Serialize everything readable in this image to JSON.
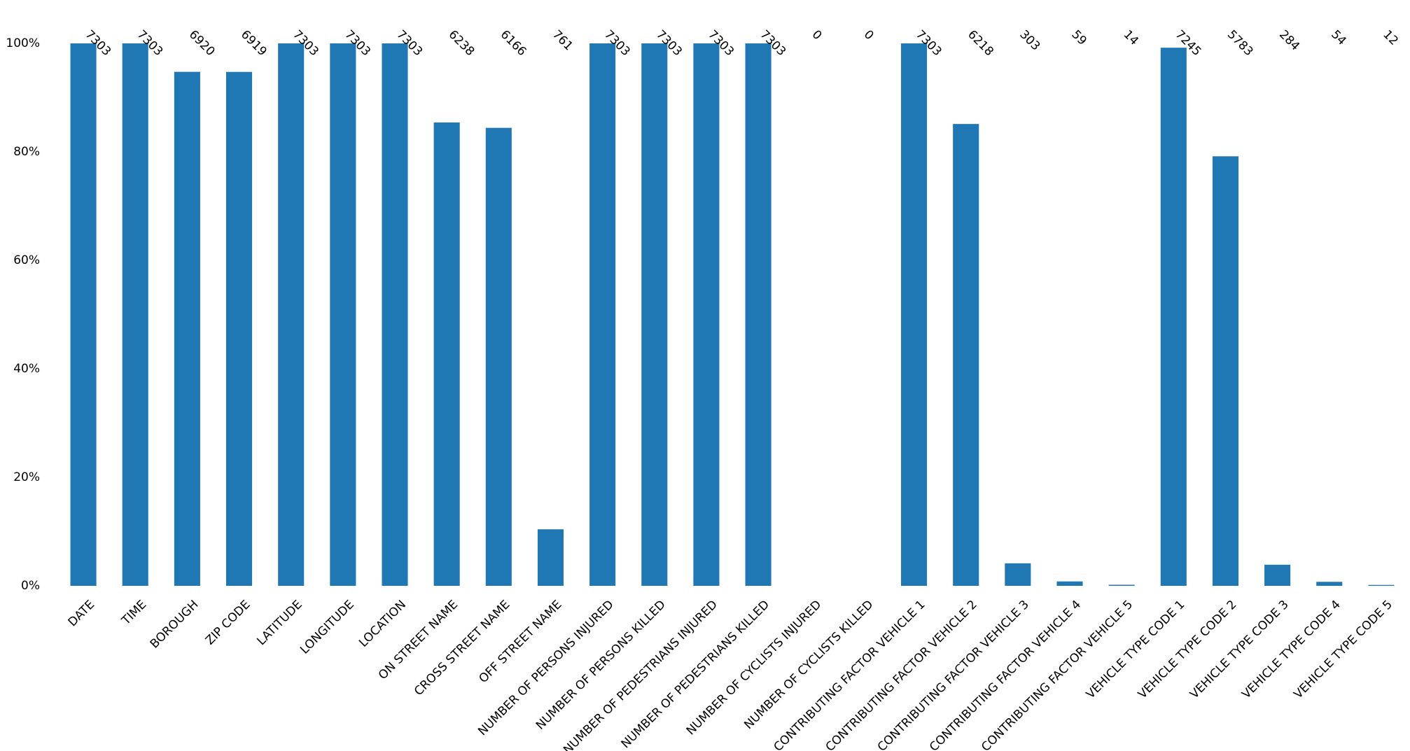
{
  "chart_data": {
    "type": "bar",
    "title": "",
    "xlabel": "",
    "ylabel": "",
    "ylim": [
      0,
      1
    ],
    "grid": false,
    "legend": "none",
    "bar_color": "#1f77b4",
    "y_ticks": [
      {
        "value": 0,
        "label": "0%"
      },
      {
        "value": 0.2,
        "label": "20%"
      },
      {
        "value": 0.4,
        "label": "40%"
      },
      {
        "value": 0.6,
        "label": "60%"
      },
      {
        "value": 0.8,
        "label": "80%"
      },
      {
        "value": 1.0,
        "label": "100%"
      }
    ],
    "total": 7303,
    "categories": [
      "DATE",
      "TIME",
      "BOROUGH",
      "ZIP CODE",
      "LATITUDE",
      "LONGITUDE",
      "LOCATION",
      "ON STREET NAME",
      "CROSS STREET NAME",
      "OFF STREET NAME",
      "NUMBER OF PERSONS INJURED",
      "NUMBER OF PERSONS KILLED",
      "NUMBER OF PEDESTRIANS INJURED",
      "NUMBER OF PEDESTRIANS KILLED",
      "NUMBER OF CYCLISTS INJURED",
      "NUMBER OF CYCLISTS KILLED",
      "CONTRIBUTING FACTOR VEHICLE 1",
      "CONTRIBUTING FACTOR VEHICLE 2",
      "CONTRIBUTING FACTOR VEHICLE 3",
      "CONTRIBUTING FACTOR VEHICLE 4",
      "CONTRIBUTING FACTOR VEHICLE 5",
      "VEHICLE TYPE CODE 1",
      "VEHICLE TYPE CODE 2",
      "VEHICLE TYPE CODE 3",
      "VEHICLE TYPE CODE 4",
      "VEHICLE TYPE CODE 5"
    ],
    "counts": [
      7303,
      7303,
      6920,
      6919,
      7303,
      7303,
      7303,
      6238,
      6166,
      761,
      7303,
      7303,
      7303,
      7303,
      0,
      0,
      7303,
      6218,
      303,
      59,
      14,
      7245,
      5783,
      284,
      54,
      12
    ]
  }
}
